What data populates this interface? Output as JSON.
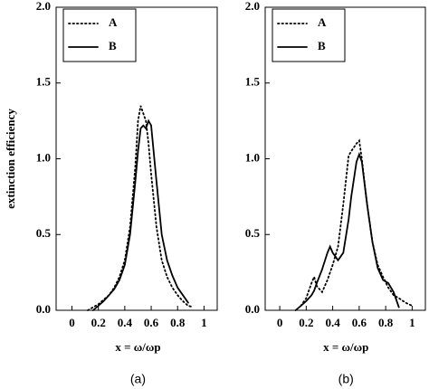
{
  "chart_data": [
    {
      "type": "line",
      "ylabel": "extinction efficiency",
      "xlabel": "x = ω/ωp",
      "caption": "(a)",
      "x": [
        0.12,
        0.16,
        0.2,
        0.24,
        0.28,
        0.32,
        0.36,
        0.4,
        0.44,
        0.48,
        0.5,
        0.52,
        0.54,
        0.56,
        0.58,
        0.6,
        0.64,
        0.68,
        0.72,
        0.76,
        0.8,
        0.84,
        0.88,
        0.92
      ],
      "series": [
        {
          "name": "A",
          "color": "#000000",
          "dash": "dotted",
          "values": [
            0.0,
            0.02,
            0.04,
            0.07,
            0.1,
            0.15,
            0.22,
            0.33,
            0.55,
            0.95,
            1.25,
            1.35,
            1.3,
            1.25,
            1.1,
            0.9,
            0.55,
            0.33,
            0.22,
            0.15,
            0.1,
            0.06,
            0.03,
            0.02
          ]
        },
        {
          "name": "B",
          "color": "#000000",
          "dash": "solid",
          "values": [
            null,
            0.0,
            0.03,
            0.06,
            0.1,
            0.14,
            0.2,
            0.3,
            0.5,
            0.85,
            1.05,
            1.2,
            1.22,
            1.2,
            1.25,
            1.22,
            0.85,
            0.5,
            0.33,
            0.23,
            0.15,
            0.1,
            0.05,
            null
          ]
        }
      ],
      "xlim": [
        -0.12,
        1.1
      ],
      "ylim": [
        0,
        2
      ],
      "xticks": [
        0,
        0.2,
        0.4,
        0.6,
        0.8,
        1
      ],
      "yticks": [
        {
          "value": 0,
          "label": "0.0"
        },
        0.5,
        {
          "value": 1,
          "label": "1.0"
        },
        1.5,
        {
          "value": 2,
          "label": "2.0"
        }
      ],
      "legend": "upper left"
    },
    {
      "type": "line",
      "xlabel": "x = ω/ωp",
      "caption": "(b)",
      "x": [
        0.12,
        0.16,
        0.2,
        0.24,
        0.26,
        0.28,
        0.32,
        0.36,
        0.38,
        0.4,
        0.44,
        0.48,
        0.52,
        0.54,
        0.58,
        0.6,
        0.62,
        0.66,
        0.7,
        0.74,
        0.78,
        0.82,
        0.86,
        0.9,
        0.95,
        1.0
      ],
      "series": [
        {
          "name": "A",
          "color": "#000000",
          "dash": "dotted",
          "values": [
            null,
            0.03,
            0.08,
            0.18,
            0.22,
            0.16,
            0.12,
            0.2,
            0.25,
            0.3,
            0.42,
            0.7,
            1.02,
            1.05,
            1.1,
            1.12,
            1.0,
            0.7,
            0.45,
            0.3,
            0.22,
            0.15,
            0.1,
            0.08,
            0.05,
            0.03
          ]
        },
        {
          "name": "B",
          "color": "#000000",
          "dash": "solid",
          "values": [
            0.0,
            0.03,
            0.06,
            0.1,
            0.13,
            0.18,
            0.27,
            0.38,
            0.42,
            0.38,
            0.33,
            0.38,
            0.6,
            0.75,
            0.98,
            1.03,
            0.98,
            0.7,
            0.45,
            0.28,
            0.2,
            0.18,
            0.12,
            0.02,
            null,
            null
          ]
        }
      ],
      "xlim": [
        -0.11,
        1.1
      ],
      "ylim": [
        0,
        2
      ],
      "xticks": [
        0,
        0.2,
        0.4,
        0.6,
        0.8,
        1
      ],
      "yticks": [
        {
          "value": 0,
          "label": "0.0"
        },
        0.5,
        {
          "value": 1,
          "label": "1.0"
        },
        1.5,
        {
          "value": 2,
          "label": "2.0"
        }
      ],
      "legend": "upper left"
    }
  ]
}
